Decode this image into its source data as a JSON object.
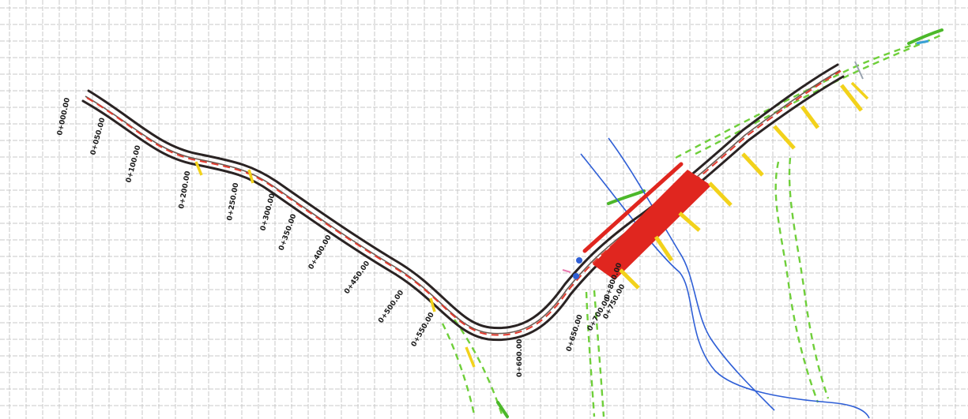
{
  "stations": {
    "s0": "0+000.00",
    "s1": "0+050.00",
    "s2": "0+100.00",
    "s3": "0+200.00",
    "s4": "0+250.00",
    "s5": "0+300.00",
    "s6": "0+350.00",
    "s7": "0+400.00",
    "s8": "0+450.00",
    "s9": "0+500.00",
    "s10": "0+550.00",
    "s11": "0+600.00",
    "s12": "0+650.00",
    "s13": "0+700.00",
    "s14": "0+750.00",
    "s15": "0+800.00"
  },
  "colors": {
    "road_edge": "#2a2323",
    "centerline": "#e23a2e",
    "bridge": "#e0261f",
    "green_lines": "#6fcf3a",
    "river": "#2f5fd6",
    "markers": "#f2d21b"
  }
}
